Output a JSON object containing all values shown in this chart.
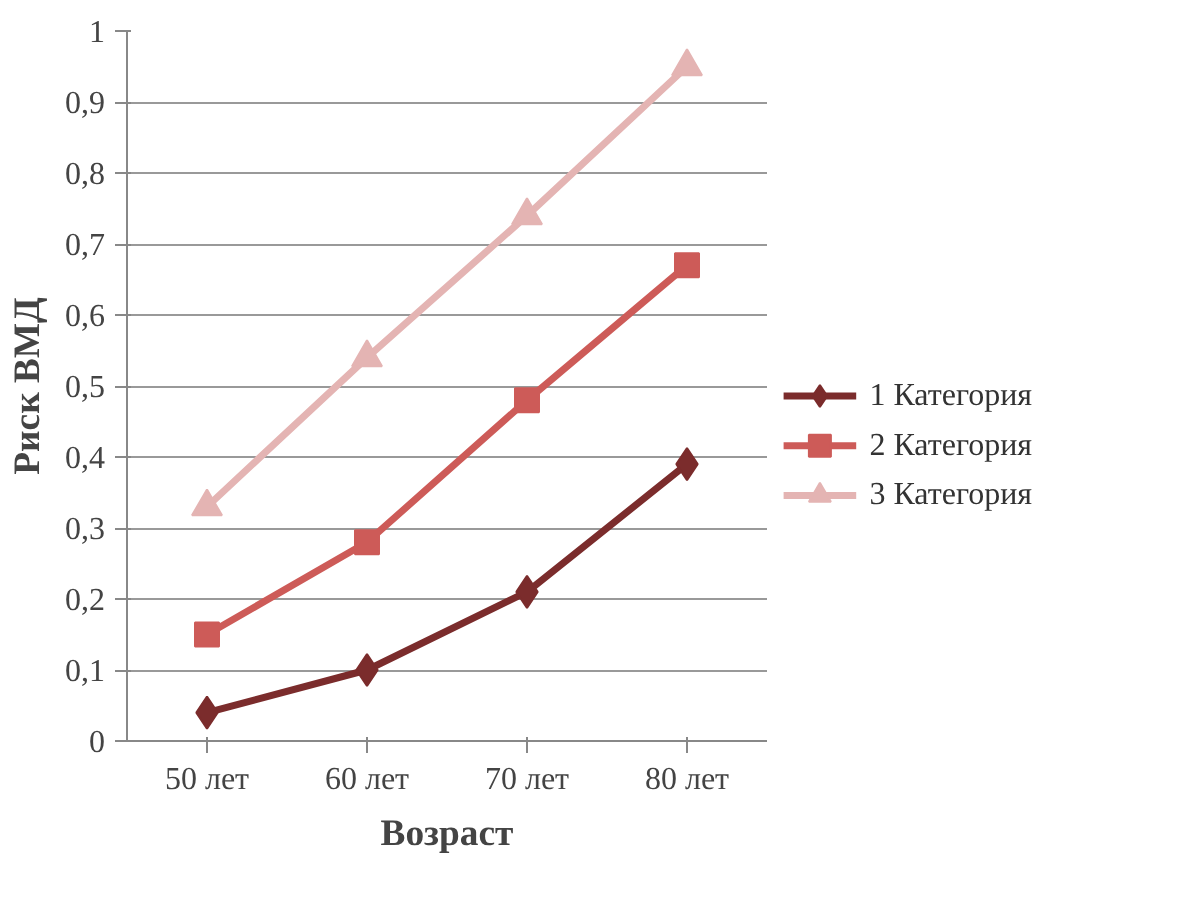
{
  "chart_data": {
    "type": "line",
    "xlabel": "Возраст",
    "ylabel": "Риск ВМД",
    "categories": [
      "50 лет",
      "60 лет",
      "70 лет",
      "80 лет"
    ],
    "series": [
      {
        "name": "1 Категория",
        "color": "#7b2c2c",
        "marker": "diamond",
        "values": [
          0.04,
          0.1,
          0.21,
          0.39
        ]
      },
      {
        "name": "2 Категория",
        "color": "#cd5b58",
        "marker": "square",
        "values": [
          0.15,
          0.28,
          0.48,
          0.67
        ]
      },
      {
        "name": "3 Категория",
        "color": "#e4b4b3",
        "marker": "triangle",
        "values": [
          0.33,
          0.54,
          0.74,
          0.95
        ]
      }
    ],
    "ylim": [
      0,
      1
    ],
    "yticks": [
      0,
      {
        "value": 0.1,
        "label": "0,1"
      },
      {
        "value": 0.2,
        "label": "0,2"
      },
      {
        "value": 0.3,
        "label": "0,3"
      },
      {
        "value": 0.4,
        "label": "0,4"
      },
      {
        "value": 0.5,
        "label": "0,5"
      },
      {
        "value": 0.6,
        "label": "0,6"
      },
      {
        "value": 0.7,
        "label": "0,7"
      },
      {
        "value": 0.8,
        "label": "0,8"
      },
      {
        "value": 0.9,
        "label": "0,9"
      },
      1
    ],
    "grid": "y",
    "legend": "right",
    "line_style": "solid"
  }
}
